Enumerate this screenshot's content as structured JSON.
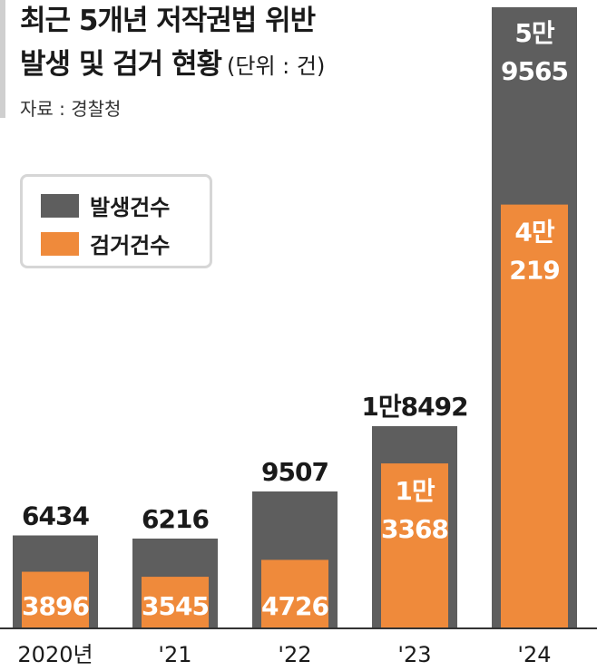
{
  "title_line1": "최근 5개년 저작권법 위반",
  "title_line2": "발생 및 검거 현황",
  "unit": "(단위 : 건)",
  "source": "자료 : 경찰청",
  "colors": {
    "occurrence": "#5e5e5e",
    "arrest": "#ef8a3b",
    "axis": "#333333"
  },
  "chart_data": {
    "type": "bar",
    "categories": [
      "2020년",
      "'21",
      "'22",
      "'23",
      "'24"
    ],
    "series": [
      {
        "name": "발생건수",
        "values": [
          6434,
          6216,
          9507,
          18492,
          59565
        ],
        "labels": [
          "6434",
          "6216",
          "9507",
          "1만8492",
          "5만 9565"
        ]
      },
      {
        "name": "검거건수",
        "values": [
          3896,
          3545,
          4726,
          13368,
          40219
        ],
        "labels": [
          "3896",
          "3545",
          "4726",
          "1만 3368",
          "4만 219"
        ]
      }
    ],
    "legend_position": "top-left",
    "grid": false
  }
}
